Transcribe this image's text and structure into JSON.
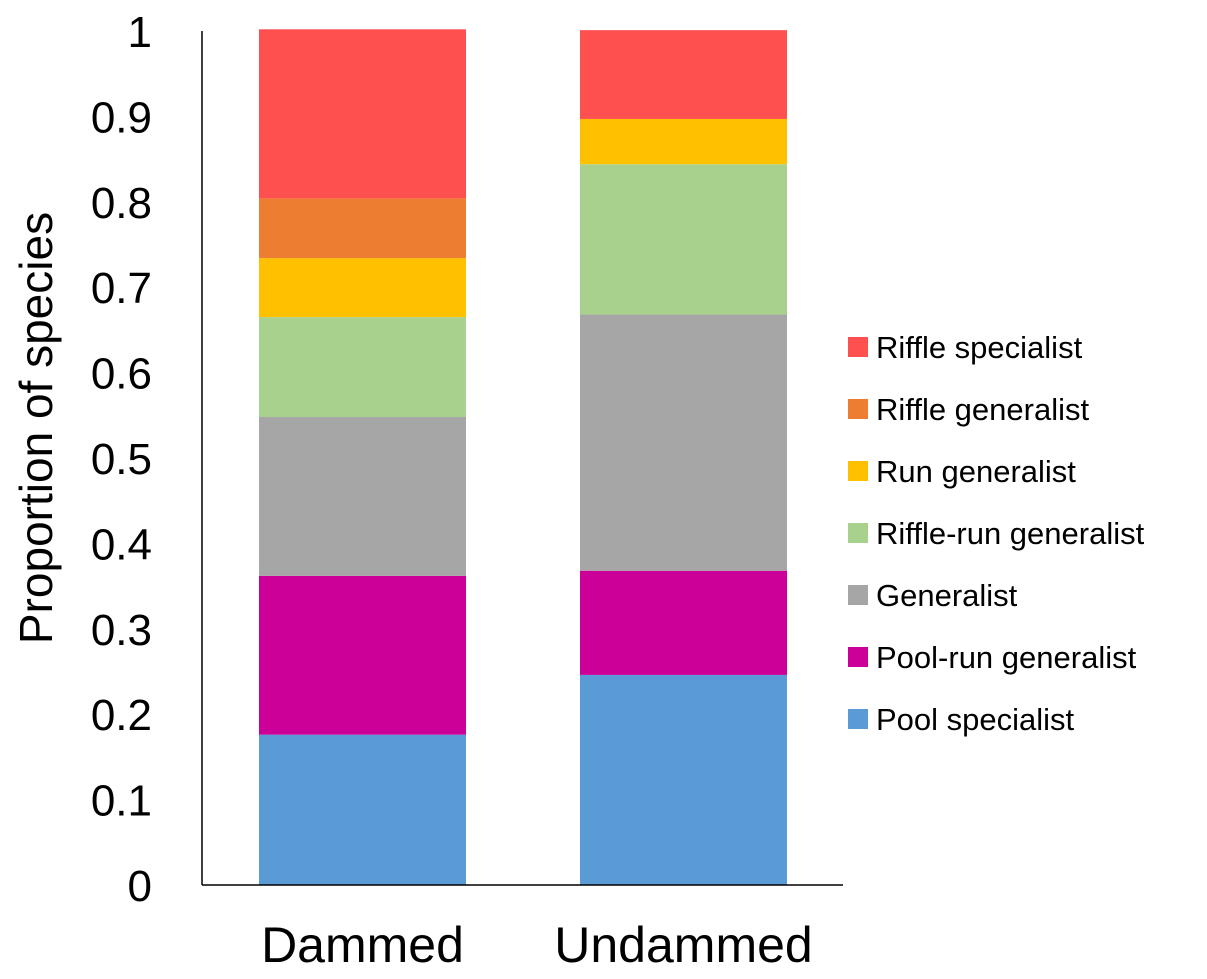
{
  "chart_data": {
    "type": "bar",
    "stacked": true,
    "categories": [
      "Dammed",
      "Undammed"
    ],
    "series": [
      {
        "name": "Pool specialist",
        "color": "#5B9BD5",
        "values": [
          0.176,
          0.246
        ]
      },
      {
        "name": "Pool-run generalist",
        "color": "#CC0099",
        "values": [
          0.186,
          0.122
        ]
      },
      {
        "name": "Generalist",
        "color": "#A6A6A6",
        "values": [
          0.186,
          0.3
        ]
      },
      {
        "name": "Riffle-run generalist",
        "color": "#A9D18E",
        "values": [
          0.117,
          0.176
        ]
      },
      {
        "name": "Run generalist",
        "color": "#FFC000",
        "values": [
          0.069,
          0.053
        ]
      },
      {
        "name": "Riffle generalist",
        "color": "#ED7D31",
        "values": [
          0.07,
          0.0
        ]
      },
      {
        "name": "Riffle specialist",
        "color": "#FF5050",
        "values": [
          0.198,
          0.104
        ]
      }
    ],
    "ylabel": "Proportion of species",
    "xlabel": "",
    "ylim": [
      0,
      1
    ],
    "yticks": [
      "0",
      "0.1",
      "0.2",
      "0.3",
      "0.4",
      "0.5",
      "0.6",
      "0.7",
      "0.8",
      "0.9",
      "1"
    ],
    "legend_order": [
      "Riffle specialist",
      "Riffle generalist",
      "Run generalist",
      "Riffle-run generalist",
      "Generalist",
      "Pool-run generalist",
      "Pool specialist"
    ],
    "legend_position": "right",
    "grid": false
  }
}
